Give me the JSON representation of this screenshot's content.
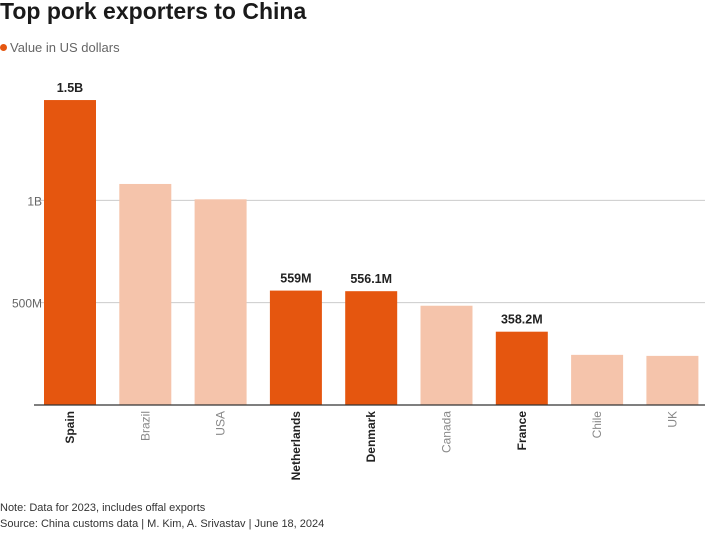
{
  "header": {
    "title": "Top pork exporters to China",
    "legend_label": "Value in US dollars"
  },
  "footer": {
    "note": "Note: Data for 2023, includes offal exports",
    "source": "Source: China customs data | M. Kim, A. Srivastav | June 18, 2024"
  },
  "colors": {
    "highlight": "#e5560f",
    "muted": "#f5c4ab",
    "grid": "#cccccc",
    "axis": "#333333"
  },
  "chart_data": {
    "type": "bar",
    "title": "Top pork exporters to China",
    "xlabel": "",
    "ylabel": "",
    "ylim": [
      0,
      1500000000
    ],
    "grid": true,
    "legend": "top-left",
    "yticks": [
      {
        "value": 500000000,
        "label": "500M"
      },
      {
        "value": 1000000000,
        "label": "1B"
      }
    ],
    "categories": [
      "Spain",
      "Brazil",
      "USA",
      "Netherlands",
      "Denmark",
      "Canada",
      "France",
      "Chile",
      "UK"
    ],
    "series": [
      {
        "name": "Value in US dollars",
        "values": [
          1490000000,
          1080000000,
          1005000000,
          559000000,
          556100000,
          485000000,
          358200000,
          245000000,
          240000000
        ],
        "highlighted": [
          true,
          false,
          false,
          true,
          true,
          false,
          true,
          false,
          false
        ],
        "data_labels": [
          "1.5B",
          "",
          "",
          "559M",
          "556.1M",
          "",
          "358.2M",
          "",
          ""
        ]
      }
    ]
  }
}
